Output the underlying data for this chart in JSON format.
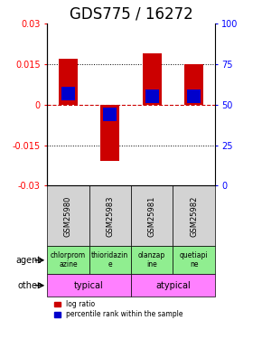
{
  "title": "GDS775 / 16272",
  "samples": [
    "GSM25980",
    "GSM25983",
    "GSM25981",
    "GSM25982"
  ],
  "log_ratios": [
    0.017,
    -0.021,
    0.019,
    0.015
  ],
  "percentile_ranks": [
    0.57,
    0.44,
    0.55,
    0.55
  ],
  "agents": [
    "chlorprom\nazine",
    "thioridazin\ne",
    "olanzap\nine",
    "quetiapi\nne"
  ],
  "agent_colors": [
    "#90ee90",
    "#90ee90",
    "#90ee90",
    "#90ee90"
  ],
  "other_groups": [
    [
      "typical",
      2
    ],
    [
      "atypical",
      2
    ]
  ],
  "other_color": "#ff80ff",
  "ylim": [
    -0.03,
    0.03
  ],
  "yticks_left": [
    -0.03,
    -0.015,
    0,
    0.015,
    0.03
  ],
  "yticks_right": [
    0,
    25,
    50,
    75,
    100
  ],
  "bar_color_red": "#cc0000",
  "bar_color_blue": "#0000cc",
  "hline_color": "#cc0000",
  "dotted_color": "#000000",
  "title_fontsize": 12,
  "tick_fontsize": 7,
  "label_fontsize": 8
}
